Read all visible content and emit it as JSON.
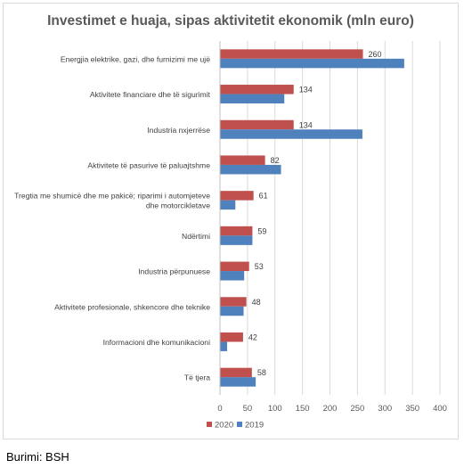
{
  "source_note": "Burimi: BSH",
  "chart_data": {
    "type": "bar",
    "orientation": "horizontal",
    "title": "Investimet e huaja, sipas aktivitetit ekonomik (mln euro)",
    "categories": [
      [
        "Energjia elektrike, gazi, dhe furnizimi me ujë"
      ],
      [
        "Aktivitete financiare dhe të sigurimit"
      ],
      [
        "Industria nxjerrëse"
      ],
      [
        "Aktivitete të pasurive të paluajtshme"
      ],
      [
        "Tregtia me shumicë dhe me pakicë; riparimi i automjeteve",
        "dhe motorcikletave"
      ],
      [
        "Ndërtimi"
      ],
      [
        "Industria përpunuese"
      ],
      [
        "Aktivitete profesionale, shkencore dhe teknike"
      ],
      [
        "Informacioni dhe komunikacioni"
      ],
      [
        "Të tjera"
      ]
    ],
    "series": [
      {
        "name": "2020",
        "color": "#c0504d",
        "values": [
          260,
          134,
          134,
          82,
          61,
          59,
          53,
          48,
          42,
          58
        ],
        "show_labels": true
      },
      {
        "name": "2019",
        "color": "#4f81bd",
        "values": [
          335,
          117,
          259,
          111,
          28,
          59,
          44,
          43,
          13,
          65
        ],
        "show_labels": false
      }
    ],
    "xlim": [
      0,
      400
    ],
    "xticks": [
      0,
      50,
      100,
      150,
      200,
      250,
      300,
      350,
      400
    ],
    "grid": true,
    "legend_position": "bottom",
    "legend_order": [
      "2020",
      "2019"
    ]
  }
}
